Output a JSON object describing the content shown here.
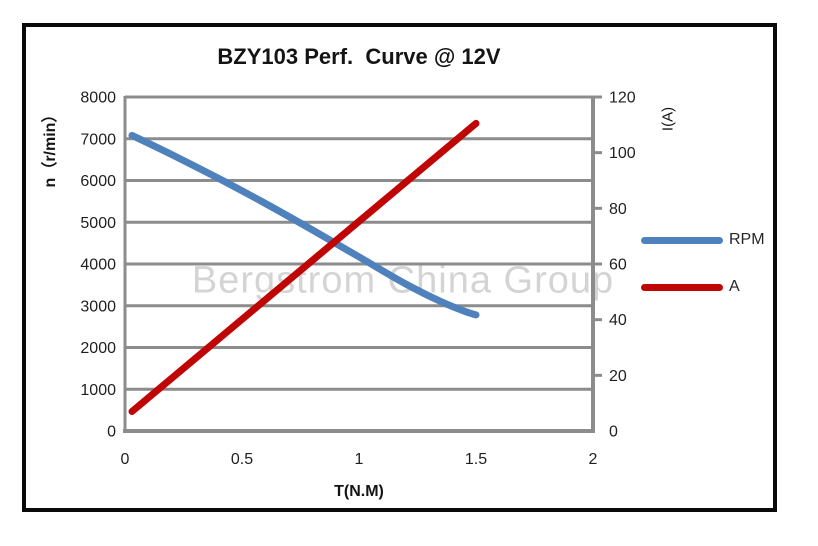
{
  "watermark": "Bergstrom China Group",
  "colors": {
    "grid": "#8c8c8c",
    "axis": "#8c8c8c",
    "tick_text": "#1f1f1f",
    "frame": "#0a0a0a",
    "watermark": "#8f8f8f",
    "series_rpm": "#4f81bd",
    "series_a": "#c00505"
  },
  "chart_data": {
    "type": "line",
    "title": "BZY103 Perf.  Curve @ 12V",
    "xlabel": "T(N.M)",
    "y_left_label": "n（r/min）",
    "y_right_label": "I(A)",
    "x_range": [
      0,
      2
    ],
    "x_ticks": [
      0,
      0.5,
      1,
      1.5,
      2
    ],
    "y_left_range": [
      0,
      8000
    ],
    "y_left_ticks": [
      0,
      1000,
      2000,
      3000,
      4000,
      5000,
      6000,
      7000,
      8000
    ],
    "y_right_range": [
      0,
      120
    ],
    "y_right_ticks": [
      0,
      20,
      40,
      60,
      80,
      100,
      120
    ],
    "grid": "horizontal-only",
    "legend_position": "right",
    "series": [
      {
        "name": "RPM",
        "y_axis": "left",
        "color": "#4f81bd",
        "x": [
          0.03,
          0.2,
          0.4,
          0.6,
          0.8,
          1.0,
          1.2,
          1.35,
          1.45,
          1.5
        ],
        "y": [
          7080,
          6620,
          6050,
          5450,
          4820,
          4170,
          3520,
          3100,
          2870,
          2780
        ]
      },
      {
        "name": "A",
        "y_axis": "right",
        "color": "#c00505",
        "x": [
          0.03,
          1.5
        ],
        "y": [
          7,
          110.5
        ]
      }
    ]
  }
}
